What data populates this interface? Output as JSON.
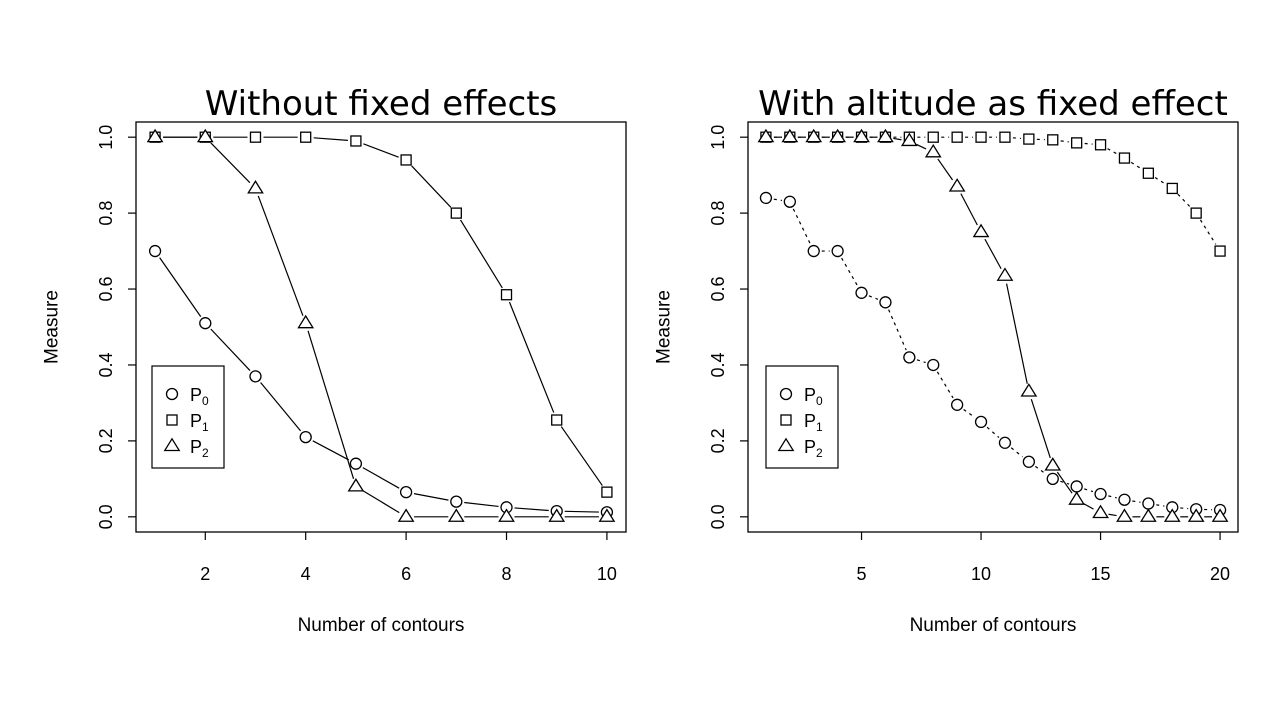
{
  "chart_data": [
    {
      "type": "line",
      "title": "Without fixed effects",
      "xlabel": "Number of contours",
      "ylabel": "Measure",
      "xlim": [
        1,
        10
      ],
      "ylim": [
        0,
        1
      ],
      "xticks": [
        "2",
        "4",
        "6",
        "8",
        "10"
      ],
      "yticks": [
        "0.0",
        "0.2",
        "0.4",
        "0.6",
        "0.8",
        "1.0"
      ],
      "legend_position": "bottom-left",
      "x": [
        1,
        2,
        3,
        4,
        5,
        6,
        7,
        8,
        9,
        10
      ],
      "series": [
        {
          "name": "P",
          "sub": "0",
          "marker": "circle",
          "values": [
            0.7,
            0.51,
            0.37,
            0.21,
            0.14,
            0.065,
            0.04,
            0.025,
            0.015,
            0.012
          ]
        },
        {
          "name": "P",
          "sub": "1",
          "marker": "square",
          "values": [
            1.0,
            1.0,
            1.0,
            1.0,
            0.99,
            0.94,
            0.8,
            0.585,
            0.255,
            0.065
          ]
        },
        {
          "name": "P",
          "sub": "2",
          "marker": "triangle",
          "values": [
            1.0,
            1.0,
            0.865,
            0.51,
            0.08,
            0.0,
            0.0,
            0.0,
            0.0,
            0.0
          ]
        }
      ]
    },
    {
      "type": "line",
      "title": "With altitude as fixed effect",
      "xlabel": "Number of contours",
      "ylabel": "Measure",
      "xlim": [
        1,
        20
      ],
      "ylim": [
        0,
        1
      ],
      "xticks": [
        "5",
        "10",
        "15",
        "20"
      ],
      "yticks": [
        "0.0",
        "0.2",
        "0.4",
        "0.6",
        "0.8",
        "1.0"
      ],
      "legend_position": "bottom-left",
      "x": [
        1,
        2,
        3,
        4,
        5,
        6,
        7,
        8,
        9,
        10,
        11,
        12,
        13,
        14,
        15,
        16,
        17,
        18,
        19,
        20
      ],
      "series": [
        {
          "name": "P",
          "sub": "0",
          "marker": "circle",
          "values": [
            0.84,
            0.83,
            0.7,
            0.7,
            0.59,
            0.565,
            0.42,
            0.4,
            0.295,
            0.25,
            0.195,
            0.145,
            0.1,
            0.08,
            0.06,
            0.045,
            0.035,
            0.025,
            0.02,
            0.018
          ]
        },
        {
          "name": "P",
          "sub": "1",
          "marker": "square",
          "values": [
            1.0,
            1.0,
            1.0,
            1.0,
            1.0,
            1.0,
            1.0,
            1.0,
            1.0,
            1.0,
            1.0,
            0.995,
            0.993,
            0.985,
            0.98,
            0.945,
            0.905,
            0.865,
            0.8,
            0.7
          ]
        },
        {
          "name": "P",
          "sub": "2",
          "marker": "triangle",
          "values": [
            1.0,
            1.0,
            1.0,
            1.0,
            1.0,
            1.0,
            0.99,
            0.96,
            0.87,
            0.75,
            0.635,
            0.33,
            0.135,
            0.045,
            0.01,
            0.0,
            0.0,
            0.0,
            0.0,
            0.0
          ]
        }
      ]
    }
  ]
}
